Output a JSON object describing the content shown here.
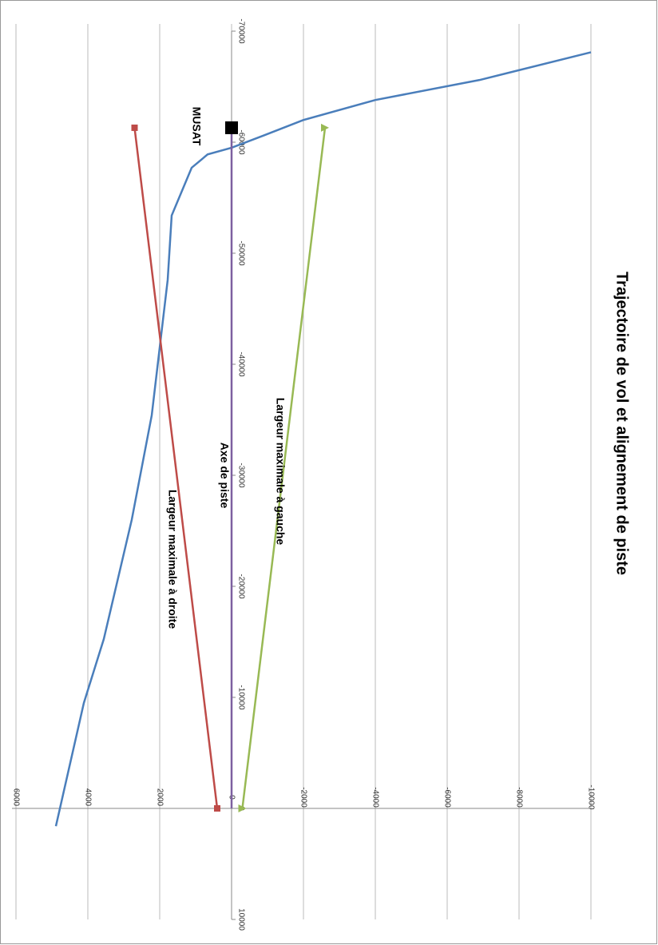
{
  "chart_data": {
    "type": "line",
    "title": "Trajectoire de vol et alignement de piste",
    "xlim": [
      -70000,
      10000
    ],
    "xticks": [
      -70000,
      -60000,
      -50000,
      -40000,
      -30000,
      -20000,
      -10000,
      0,
      10000
    ],
    "ylim": [
      6000,
      -10000
    ],
    "yticks": [
      6000,
      4000,
      2000,
      0,
      -2000,
      -4000,
      -6000,
      -8000,
      -10000
    ],
    "grid": true,
    "series": [
      {
        "color": "#4a7ebb",
        "marker": "none",
        "x": [
          1600,
          -9500,
          -15250,
          -26000,
          -35400,
          -47600,
          -53400,
          -57700,
          -58900,
          -59500,
          -60600,
          -62000,
          -63800,
          -65600,
          -68100
        ],
        "values": [
          4889,
          4111,
          3556,
          2778,
          2222,
          1778,
          1667,
          1111,
          667,
          0,
          -889,
          -2000,
          -4000,
          -6900,
          -10000
        ]
      },
      {
        "name": "Largeur maximale à droite",
        "color": "#be4b48",
        "marker": "square",
        "x": [
          0,
          -61300
        ],
        "values": [
          400,
          2700
        ]
      },
      {
        "name": "Largeur maximale à gauche",
        "color": "#98b954",
        "marker": "triangle",
        "x": [
          0,
          -61300
        ],
        "values": [
          -300,
          -2600
        ]
      },
      {
        "name": "Axe de piste",
        "color": "#7d60a0",
        "marker": "none",
        "x": [
          0,
          -61300
        ],
        "values": [
          0,
          0
        ]
      },
      {
        "name": "MUSAT",
        "color": "#000000",
        "marker": "bigsquare",
        "x": [
          -61300
        ],
        "values": [
          0
        ]
      }
    ]
  }
}
